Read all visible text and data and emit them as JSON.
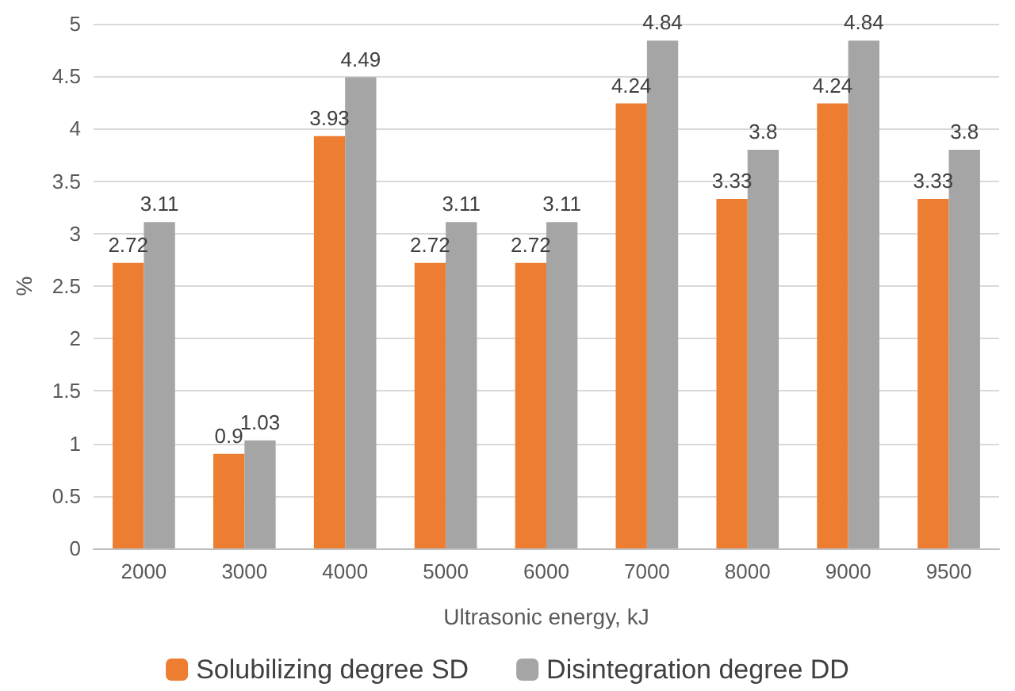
{
  "chart_data": {
    "type": "bar",
    "xlabel": "Ultrasonic energy, kJ",
    "ylabel": "%",
    "categories": [
      "2000",
      "3000",
      "4000",
      "5000",
      "6000",
      "7000",
      "8000",
      "9000",
      "9500"
    ],
    "series": [
      {
        "name": "Solubilizing degree SD",
        "color": "#ed7d31",
        "values": [
          2.72,
          0.9,
          3.93,
          2.72,
          2.72,
          4.24,
          3.33,
          4.24,
          3.33
        ]
      },
      {
        "name": "Disintegration degree DD",
        "color": "#a5a5a5",
        "values": [
          3.11,
          1.03,
          4.49,
          3.11,
          3.11,
          4.84,
          3.8,
          4.84,
          3.8
        ]
      }
    ],
    "ylim": [
      0,
      5
    ],
    "yticks": [
      0,
      0.5,
      1,
      1.5,
      2,
      2.5,
      3,
      3.5,
      4,
      4.5,
      5
    ],
    "grid": "y",
    "legend": "bottom",
    "data_labels": true
  }
}
